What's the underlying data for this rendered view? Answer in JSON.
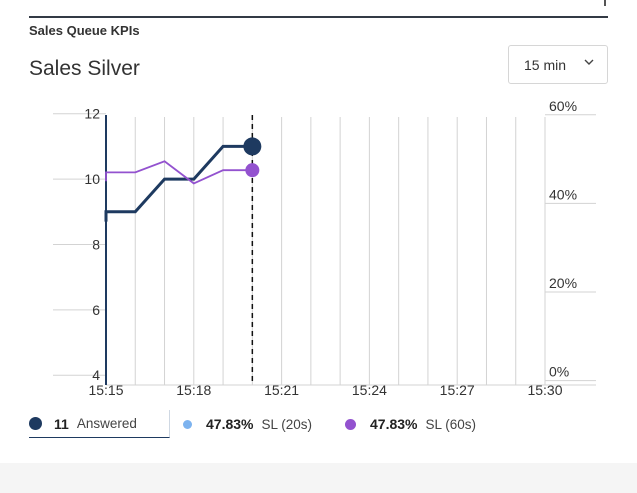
{
  "header": {
    "section_title": "Sales Queue KPIs"
  },
  "panel": {
    "title": "Sales Silver"
  },
  "interval_select": {
    "value": "15 min",
    "icon": "chevron-down-icon"
  },
  "colors": {
    "answered": "#1e3a60",
    "sl20": "#7db3ef",
    "sl60": "#9352cf",
    "grid": "#d3d3d3",
    "axis": "#1e3a60"
  },
  "legend": {
    "answered": {
      "value": "11",
      "label": "Answered"
    },
    "sl20": {
      "value": "47.83%",
      "label": "SL (20s)"
    },
    "sl60": {
      "value": "47.83%",
      "label": "SL (60s)"
    }
  },
  "chart_data": {
    "type": "line",
    "x_tick_labels": [
      "15:15",
      "15:18",
      "15:21",
      "15:24",
      "15:27",
      "15:30"
    ],
    "xlim": [
      "15:15",
      "15:30"
    ],
    "x_grid_step_minutes": 1,
    "y_left": {
      "ticks": [
        "4",
        "6",
        "8",
        "10",
        "12"
      ],
      "lim": [
        3.7,
        11.9
      ]
    },
    "y_right": {
      "ticks": [
        "0%",
        "20%",
        "40%",
        "60%"
      ],
      "lim": [
        -1,
        59.5
      ]
    },
    "grid": true,
    "current_time": "15:20",
    "series": [
      {
        "axis": "left",
        "x": [
          "15:15",
          "15:15",
          "15:16",
          "15:17",
          "15:18",
          "15:19",
          "15:20"
        ],
        "values": [
          8.7,
          9.0,
          9.0,
          10.0,
          10.0,
          11.0,
          11.0
        ]
      },
      {
        "axis": "right",
        "x": [
          "15:15",
          "15:15",
          "15:16",
          "15:17",
          "15:18",
          "15:19",
          "15:20"
        ],
        "values": [
          45.0,
          47.0,
          47.0,
          49.5,
          44.5,
          47.5,
          47.5
        ]
      }
    ]
  }
}
